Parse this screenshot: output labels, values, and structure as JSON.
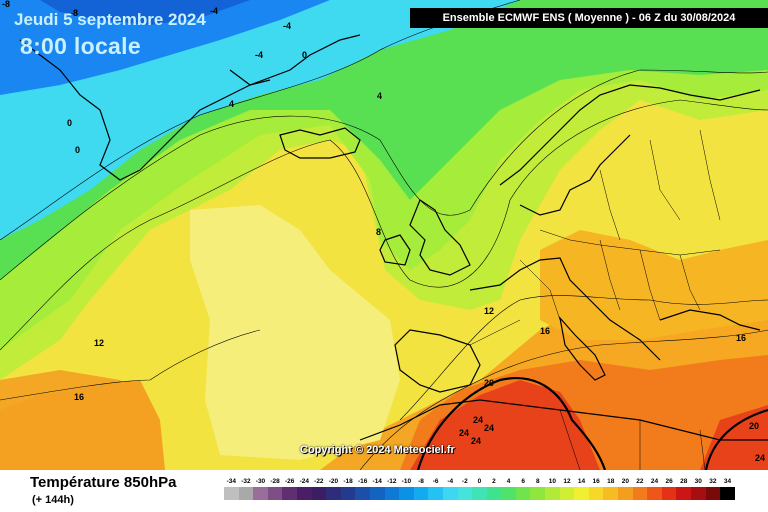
{
  "map": {
    "date": "Jeudi 5 septembre 2024",
    "time": "8:00 locale",
    "header": "Ensemble ECMWF ENS  ( Moyenne )  -  06 Z du 30/08/2024",
    "copyright": "Copyright © 2024 Meteociel.fr",
    "parameter": "Température 850hPa",
    "lead": "(+ 144h)",
    "contour_labels": [
      "-8",
      "-8",
      "-4",
      "-4",
      "-4",
      "0",
      "4",
      "4",
      "0",
      "0",
      "8",
      "12",
      "12",
      "16",
      "16",
      "16",
      "20",
      "20",
      "24",
      "24",
      "24",
      "24",
      "24"
    ],
    "legend": {
      "values": [
        "-34",
        "-32",
        "-30",
        "-28",
        "-26",
        "-24",
        "-22",
        "-20",
        "-18",
        "-16",
        "-14",
        "-12",
        "-10",
        "-8",
        "-6",
        "-4",
        "-2",
        "0",
        "2",
        "4",
        "6",
        "8",
        "10",
        "12",
        "14",
        "16",
        "18",
        "20",
        "22",
        "24",
        "26",
        "28",
        "30",
        "32",
        "34"
      ],
      "colors": [
        "#bfbfbf",
        "#a9a9a9",
        "#9a6e9a",
        "#7e4f86",
        "#5f2f71",
        "#4a1e66",
        "#3a1d63",
        "#2d2d7a",
        "#233b8f",
        "#1b4fa8",
        "#1463c0",
        "#0f7ad6",
        "#0b92e6",
        "#13aaf0",
        "#24c2f3",
        "#3fd6f2",
        "#44e3dc",
        "#3fe3b6",
        "#3fe38e",
        "#4fe36a",
        "#6fe44d",
        "#8fe63d",
        "#b1ea37",
        "#d2ee34",
        "#f0f030",
        "#f7d829",
        "#f6bc24",
        "#f49e20",
        "#f27c1c",
        "#ee561a",
        "#e53217",
        "#cc1515",
        "#a50f0f",
        "#7a0a0a",
        "#000000"
      ]
    },
    "colors": {
      "deep_blue": "#1a86f2",
      "cyan": "#3fd9f0",
      "green": "#58e052",
      "yellow_green": "#a6ec3b",
      "yellow": "#eef23a",
      "pale_yellow": "#f5ee7a",
      "orange": "#f4a724",
      "red": "#e8421a",
      "coast": "#000000",
      "border": "#000000"
    }
  }
}
